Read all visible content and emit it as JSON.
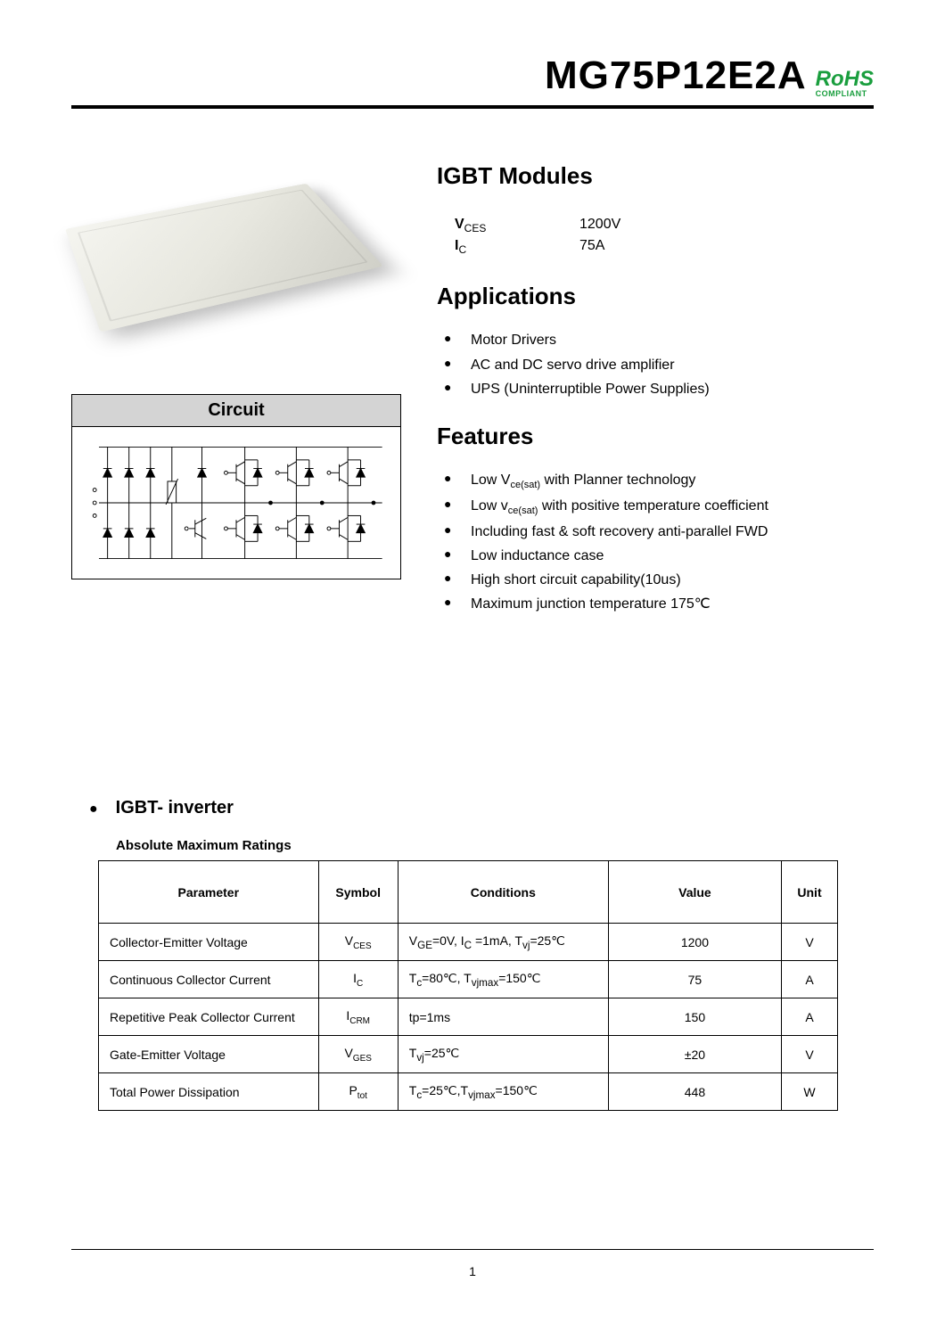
{
  "header": {
    "part_number": "MG75P12E2A",
    "rohs_main": "RoHS",
    "rohs_sub": "COMPLIANT"
  },
  "product": {
    "title": "IGBT Modules",
    "specs": [
      {
        "label_main": "V",
        "label_sub": "CES",
        "value": "1200V"
      },
      {
        "label_main": "I",
        "label_sub": "C",
        "value": "75A"
      }
    ]
  },
  "circuit": {
    "title": "Circuit"
  },
  "applications": {
    "title": "Applications",
    "items": [
      "Motor Drivers",
      "AC and DC servo drive amplifier",
      "UPS (Uninterruptible Power Supplies)"
    ]
  },
  "features": {
    "title": "Features",
    "items": [
      {
        "pre": "Low V",
        "sub": "ce(sat)",
        "post": " with Planner technology"
      },
      {
        "pre": "Low v",
        "sub": "ce(sat)",
        "post": " with positive temperature coefficient"
      },
      {
        "pre": "Including fast & soft recovery anti-parallel FWD",
        "sub": "",
        "post": ""
      },
      {
        "pre": "Low inductance case",
        "sub": "",
        "post": ""
      },
      {
        "pre": "High short circuit capability(10us)",
        "sub": "",
        "post": ""
      },
      {
        "pre": "Maximum junction temperature 175℃",
        "sub": "",
        "post": ""
      }
    ]
  },
  "inverter": {
    "title": "IGBT- inverter",
    "table_caption": "Absolute Maximum Ratings",
    "columns": [
      "Parameter",
      "Symbol",
      "Conditions",
      "Value",
      "Unit"
    ],
    "rows": [
      {
        "param": "Collector-Emitter Voltage",
        "sym_main": "V",
        "sym_sub": "CES",
        "cond": "V<sub>GE</sub>=0V, I<sub>C</sub> =1mA, T<sub>vj</sub>=25℃",
        "value": "1200",
        "unit": "V"
      },
      {
        "param": "Continuous Collector Current",
        "sym_main": "I",
        "sym_sub": "C",
        "cond": "T<sub>c</sub>=80℃, T<sub>vjmax</sub>=150℃",
        "value": "75",
        "unit": "A"
      },
      {
        "param": "Repetitive Peak Collector Current",
        "sym_main": "I",
        "sym_sub": "CRM",
        "cond": "tp=1ms",
        "value": "150",
        "unit": "A"
      },
      {
        "param": "Gate-Emitter Voltage",
        "sym_main": "V",
        "sym_sub": "GES",
        "cond": "T<sub>vj</sub>=25℃",
        "value": "±20",
        "unit": "V"
      },
      {
        "param": "Total Power Dissipation",
        "sym_main": "P",
        "sym_sub": "tot",
        "cond": "T<sub>c</sub>=25℃,T<sub>vjmax</sub>=150℃",
        "value": "448",
        "unit": "W"
      }
    ]
  },
  "footer": {
    "page": "1"
  }
}
